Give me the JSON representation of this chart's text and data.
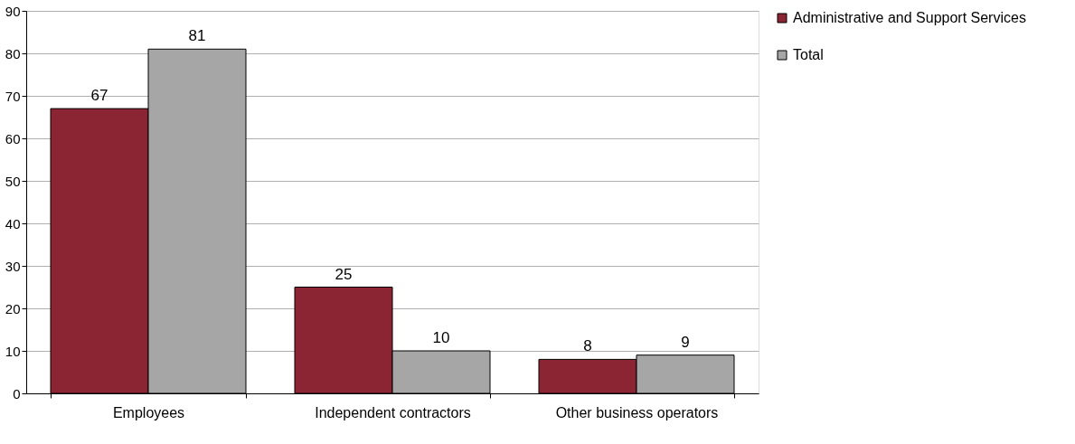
{
  "chart_data": {
    "type": "bar",
    "categories": [
      "Employees",
      "Independent contractors",
      "Other business operators"
    ],
    "series": [
      {
        "name": "Administrative and Support Services",
        "color": "#8b2433",
        "values": [
          67,
          25,
          8
        ]
      },
      {
        "name": "Total",
        "color": "#a6a6a6",
        "values": [
          81,
          10,
          9
        ]
      }
    ],
    "ylim": [
      0,
      90
    ],
    "yticks": [
      0,
      10,
      20,
      30,
      40,
      50,
      60,
      70,
      80,
      90
    ],
    "grid": "y",
    "legend": "right",
    "data_labels": true
  }
}
